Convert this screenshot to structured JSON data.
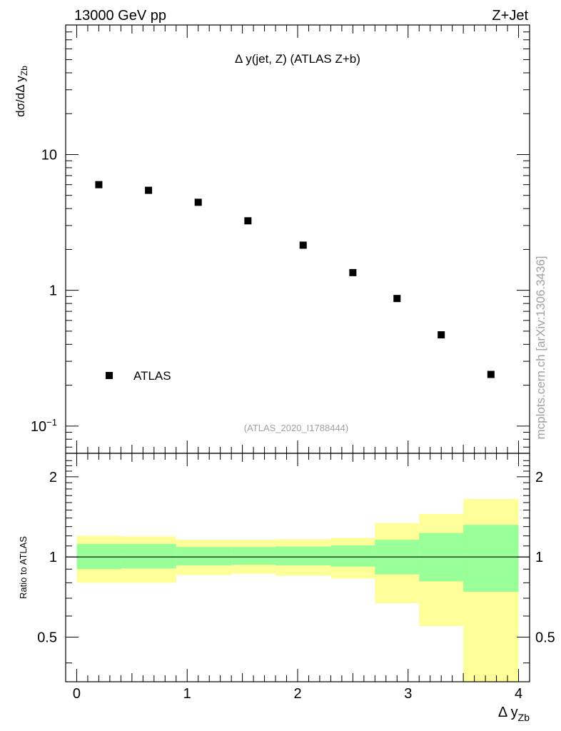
{
  "header": {
    "energy_label": "13000 GeV pp",
    "process_label": "Z+Jet"
  },
  "plot_title": "Δ y(jet, Z) (ATLAS Z+b)",
  "analysis_id": "(ATLAS_2020_I1788444)",
  "side_label": "mcplots.cern.ch [arXiv:1306.3436]",
  "colors": {
    "marker": "#000000",
    "band_inner": "#99ff99",
    "band_outer": "#ffff99",
    "ref_line": "#000000"
  },
  "chart_data": [
    {
      "type": "scatter",
      "panel": "main",
      "ylabel": "dσ/dΔ y",
      "ylabel_sub": "Zb",
      "yscale": "log",
      "xlim": [
        -0.1,
        4.1
      ],
      "ylim": [
        0.063,
        90
      ],
      "y_ticks": [
        {
          "value": 10,
          "label": "10"
        },
        {
          "value": 1,
          "label": "1"
        },
        {
          "value": 0.1,
          "label": "10",
          "sup": "−1"
        }
      ],
      "legend": {
        "label": "ATLAS",
        "position": "bottom-left"
      },
      "series": [
        {
          "name": "ATLAS",
          "x": [
            0.2,
            0.65,
            1.1,
            1.55,
            2.05,
            2.5,
            2.9,
            3.3,
            3.75
          ],
          "y": [
            6.0,
            5.45,
            4.45,
            3.25,
            2.15,
            1.35,
            0.87,
            0.47,
            0.24
          ]
        }
      ]
    },
    {
      "type": "area",
      "panel": "ratio",
      "ylabel": "Ratio to ATLAS",
      "xlabel": "Δ y",
      "xlabel_sub": "Zb",
      "xlim": [
        -0.1,
        4.1
      ],
      "ylim": [
        0.34,
        2.45
      ],
      "yscale": "log",
      "x_ticks": [
        0,
        1,
        2,
        3,
        4
      ],
      "y_ticks": [
        0.5,
        1,
        2
      ],
      "reference_line": 1,
      "bins": [
        {
          "lo": 0.0,
          "hi": 0.4,
          "inner": [
            0.9,
            1.12
          ],
          "outer": [
            0.8,
            1.2
          ]
        },
        {
          "lo": 0.4,
          "hi": 0.9,
          "inner": [
            0.905,
            1.12
          ],
          "outer": [
            0.8,
            1.195
          ]
        },
        {
          "lo": 0.9,
          "hi": 1.4,
          "inner": [
            0.93,
            1.09
          ],
          "outer": [
            0.855,
            1.16
          ]
        },
        {
          "lo": 1.4,
          "hi": 1.8,
          "inner": [
            0.935,
            1.09
          ],
          "outer": [
            0.865,
            1.16
          ]
        },
        {
          "lo": 1.8,
          "hi": 2.3,
          "inner": [
            0.93,
            1.095
          ],
          "outer": [
            0.85,
            1.165
          ]
        },
        {
          "lo": 2.3,
          "hi": 2.7,
          "inner": [
            0.92,
            1.105
          ],
          "outer": [
            0.83,
            1.18
          ]
        },
        {
          "lo": 2.7,
          "hi": 3.1,
          "inner": [
            0.86,
            1.16
          ],
          "outer": [
            0.67,
            1.34
          ]
        },
        {
          "lo": 3.1,
          "hi": 3.5,
          "inner": [
            0.81,
            1.23
          ],
          "outer": [
            0.55,
            1.45
          ]
        },
        {
          "lo": 3.5,
          "hi": 4.0,
          "inner": [
            0.74,
            1.32
          ],
          "outer": [
            0.34,
            1.65
          ]
        }
      ]
    }
  ]
}
